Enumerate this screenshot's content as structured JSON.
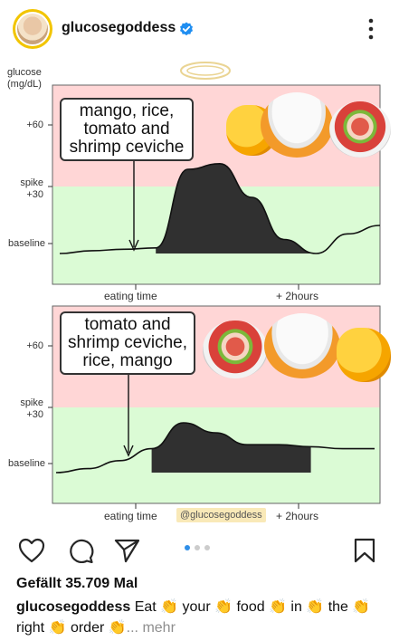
{
  "header": {
    "username": "glucosegoddess",
    "avatar_icon": "profile-avatar",
    "verified_icon": "verified-badge-icon",
    "more_icon": "more-vertical-icon"
  },
  "chart_data": [
    {
      "type": "area",
      "title": "",
      "ylabel": "glucose (mg/dL)",
      "y_ticks": [
        "+60",
        "spike +30",
        "baseline"
      ],
      "x_ticks": [
        "eating time",
        "+ 2hours"
      ],
      "annotation": "mango, rice, tomato and shrimp ceviche",
      "series": [
        {
          "values": [
            0,
            2,
            3,
            4,
            60,
            64,
            40,
            10,
            0,
            14,
            20
          ]
        }
      ],
      "zones": [
        {
          "label": "spike",
          "color": "#ffd6d6"
        },
        {
          "label": "baseline",
          "color": "#dbfbd5"
        }
      ]
    },
    {
      "type": "area",
      "title": "",
      "ylabel": "",
      "y_ticks": [
        "+60",
        "spike +30",
        "baseline"
      ],
      "x_ticks": [
        "eating time",
        "+ 2hours"
      ],
      "annotation": "tomato and shrimp ceviche, rice, mango",
      "series": [
        {
          "values": [
            0,
            2,
            6,
            12,
            25,
            20,
            14,
            14,
            13,
            12,
            12
          ]
        }
      ],
      "zones": [
        {
          "label": "spike",
          "color": "#ffd6d6"
        },
        {
          "label": "baseline",
          "color": "#dbfbd5"
        }
      ]
    }
  ],
  "watermark": "@glucosegoddess",
  "actions": {
    "like_icon": "heart-icon",
    "comment_icon": "comment-icon",
    "share_icon": "share-icon",
    "save_icon": "bookmark-icon",
    "carousel_index": 1,
    "carousel_count": 3
  },
  "likes": "Gefällt 35.709 Mal",
  "caption": {
    "username": "glucosegoddess",
    "text": "Eat 👏 your 👏 food 👏 in 👏 the 👏 right 👏 order 👏",
    "more": "... mehr"
  },
  "colors": {
    "spike_zone": "#ffd6d6",
    "baseline_zone": "#dbfbd5",
    "area_fill": "#303030",
    "verified": "#1f8ef1",
    "dot_active": "#2f8fe8"
  }
}
